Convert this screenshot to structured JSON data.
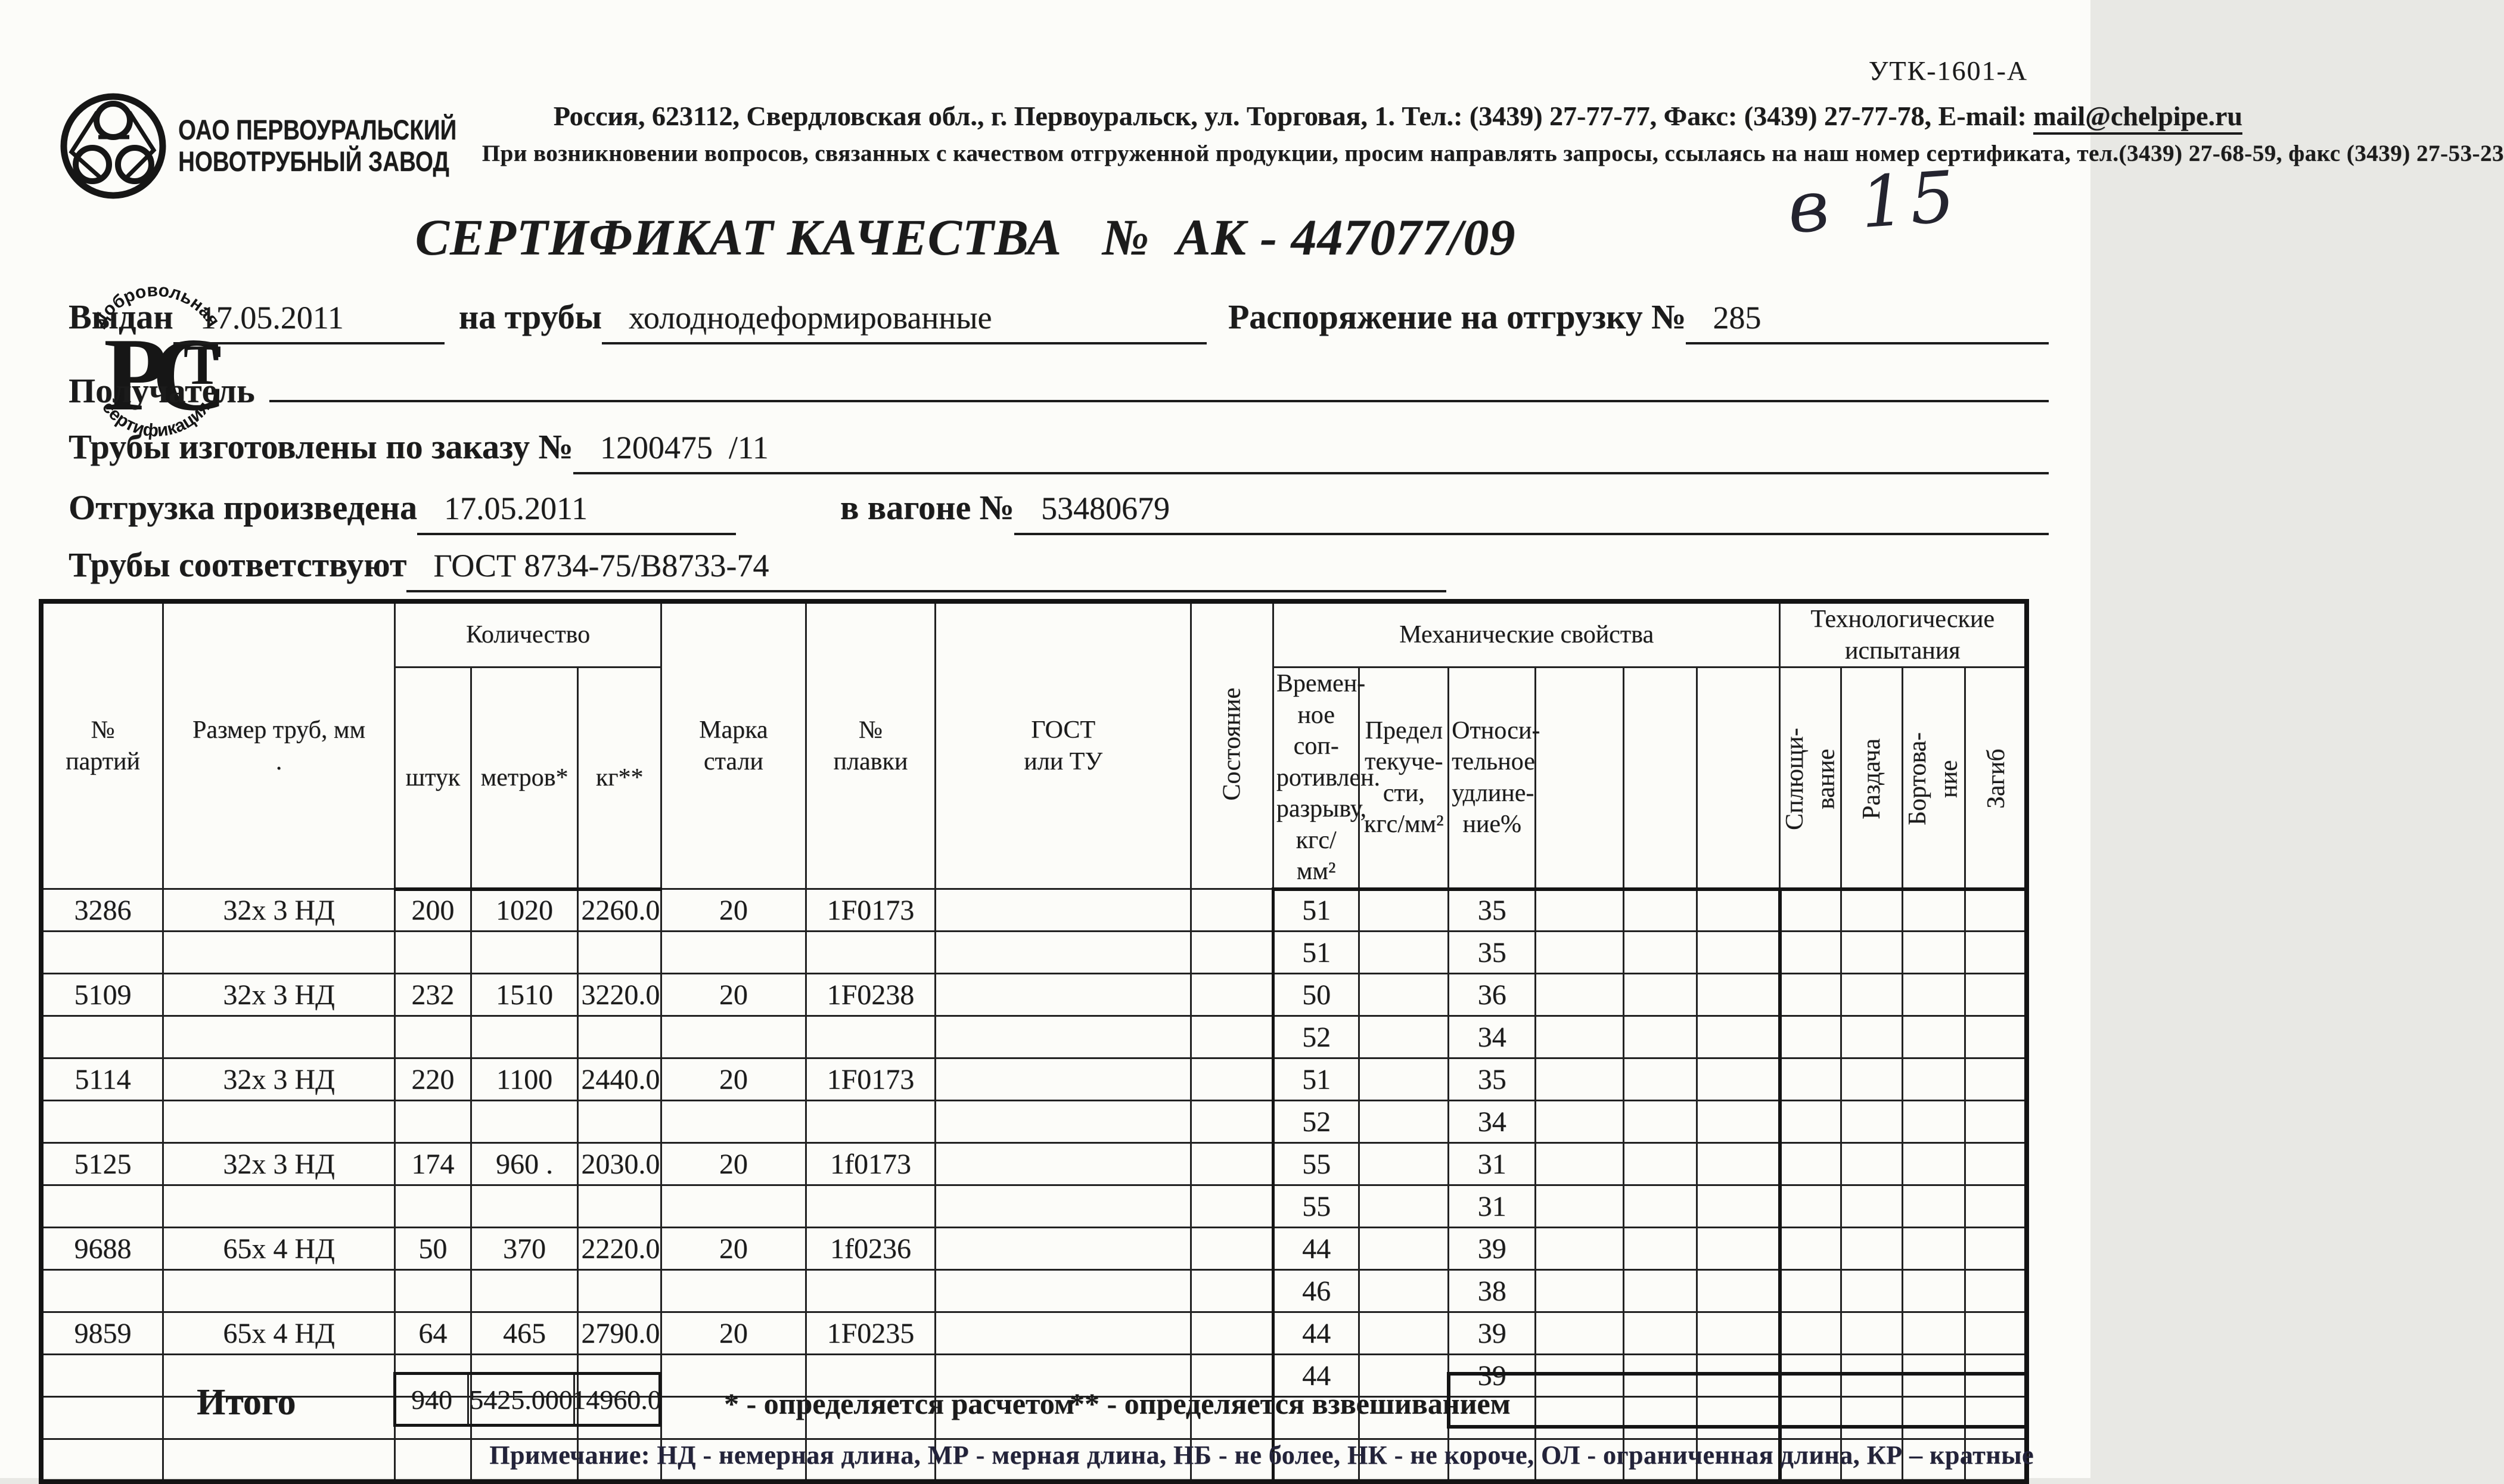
{
  "page": {
    "form_code": "УТК-1601-А",
    "handwriting": "в 15"
  },
  "company": {
    "name": "ОАО ПЕРВОУРАЛЬСКИЙ\nНОВОТРУБНЫЙ ЗАВОД",
    "address": "Россия, 623112, Свердловская обл., г. Первоуральск, ул. Торговая, 1. Тел.: (3439) 27-77-77, Факс: (3439) 27-77-78,  E-mail: ",
    "email": "mail@chelpipe.ru",
    "support_note": "При возникновении вопросов, связанных с качеством отгруженной продукции, просим направлять запросы, ссылаясь на наш номер сертификата, тел.(3439) 27-68-59, факс (3439) 27-53-23",
    "rst_mark": {
      "top": "Добровольная",
      "bottom": "сертификация",
      "center": "РСТ"
    }
  },
  "title": "СЕРТИФИКАТ КАЧЕСТВА   №  АК - 447077/09",
  "fields": {
    "issued_label": "Выдан",
    "issued_value": "17.05.2011",
    "pipes_label": "на трубы",
    "pipes_value": "холоднодеформированные",
    "shipping_order_label": "Распоряжение на отгрузку №",
    "shipping_order_value": "285",
    "receiver_label": "Получатель",
    "receiver_value": "",
    "order_label": "Трубы изготовлены по заказу №",
    "order_value": "1200475  /11",
    "shipment_label": "Отгрузка произведена",
    "shipment_date": "17.05.2011",
    "wagon_label": "в вагоне №",
    "wagon_value": "53480679",
    "standard_label": "Трубы соответствуют",
    "standard_value": "ГОСТ 8734-75/В8733-74"
  },
  "table": {
    "headers": {
      "batch": "№\nпартий",
      "size": "Размер труб, мм\n.",
      "qty_group": "Количество",
      "pcs": "штук",
      "meters": "метров*",
      "kg": "кг**",
      "steel": "Марка\nстали",
      "melt": "№\nплавки",
      "gost": "ГОСТ\nили ТУ",
      "state": "Состояние",
      "mech_group": "Механические свойства",
      "sigma": "Времен-\nное соп-\nротивлен.\nразрыву,\nкгс/мм²",
      "yield": "Предел\nтекуче-\nсти,\nкгс/мм²",
      "elong": "Относи-\nтельное\nудлине-\nние%",
      "tech_group": "Технологические\nиспытания",
      "flatten": "Сплющи-\nвание",
      "expand": "Раздача",
      "flange": "Бортова-\nние",
      "bend": "Загиб"
    },
    "rows": [
      {
        "batch": "3286",
        "size": "32х 3 НД",
        "pcs": "200",
        "meters": "1020",
        "kg": "2260.0",
        "steel": "20",
        "melt": "1F0173",
        "sigma": "51",
        "elong": "35"
      },
      {
        "sigma": "51",
        "elong": "35"
      },
      {
        "batch": "5109",
        "size": "32х 3 НД",
        "pcs": "232",
        "meters": "1510",
        "kg": "3220.0",
        "steel": "20",
        "melt": "1F0238",
        "sigma": "50",
        "elong": "36"
      },
      {
        "sigma": "52",
        "elong": "34"
      },
      {
        "batch": "5114",
        "size": "32х 3 НД",
        "pcs": "220",
        "meters": "1100",
        "kg": "2440.0",
        "steel": "20",
        "melt": "1F0173",
        "sigma": "51",
        "elong": "35"
      },
      {
        "sigma": "52",
        "elong": "34"
      },
      {
        "batch": "5125",
        "size": "32х 3 НД",
        "pcs": "174",
        "meters": "960 .",
        "kg": "2030.0",
        "steel": "20",
        "melt": "1f0173",
        "sigma": "55",
        "elong": "31"
      },
      {
        "sigma": "55",
        "elong": "31"
      },
      {
        "batch": "9688",
        "size": "65х 4 НД",
        "pcs": "50",
        "meters": "370",
        "kg": "2220.0",
        "steel": "20",
        "melt": "1f0236",
        "sigma": "44",
        "elong": "39"
      },
      {
        "sigma": "46",
        "elong": "38"
      },
      {
        "batch": "9859",
        "size": "65х 4 НД",
        "pcs": "64",
        "meters": "465",
        "kg": "2790.0",
        "steel": "20",
        "melt": "1F0235",
        "sigma": "44",
        "elong": "39"
      },
      {
        "sigma": "44",
        "elong": "39"
      },
      {},
      {}
    ],
    "totals": {
      "label": "Итого",
      "pcs": "940",
      "meters": "5425.000",
      "kg": "14960.0"
    },
    "footnotes": {
      "calc": "* - определяется расчетом",
      "weigh": "** - определяется взвешиванием"
    },
    "note": "Примечание: НД - немерная длина, МР - мерная длина, НБ - не более, НК - не короче, ОЛ - ограниченная длина, КР – кратные"
  }
}
